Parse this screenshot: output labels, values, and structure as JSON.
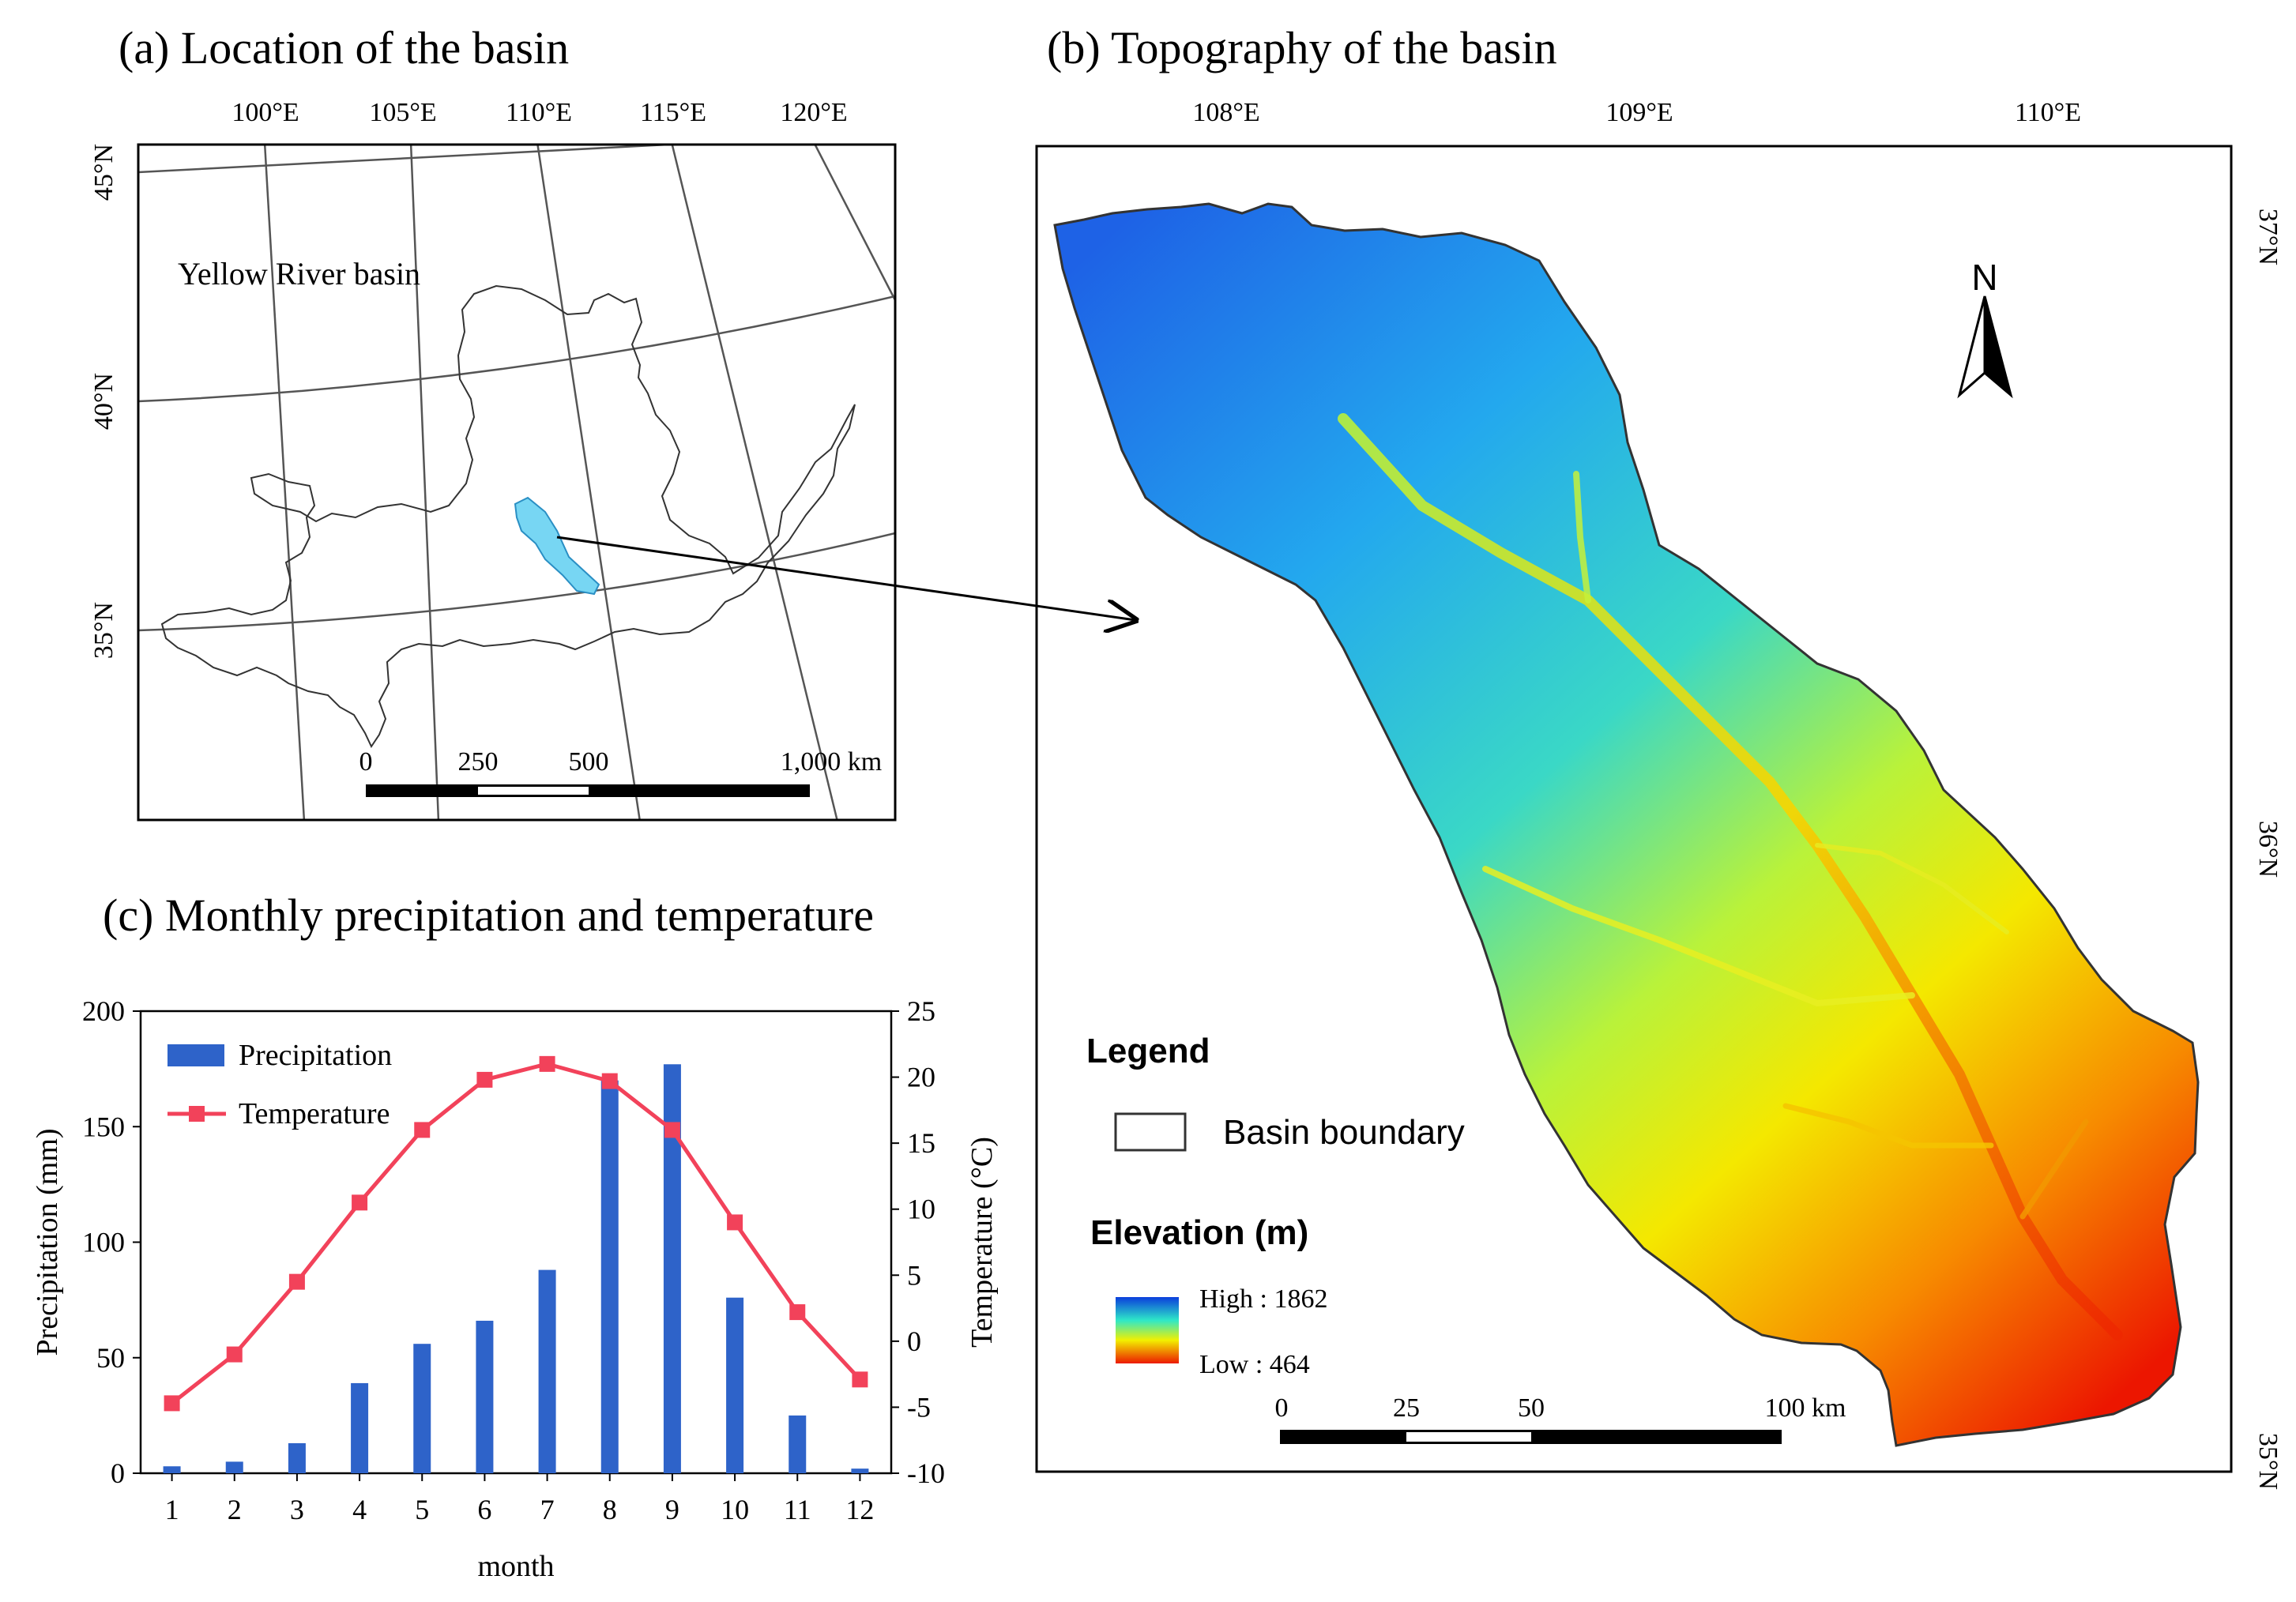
{
  "panel_a": {
    "title": "(a) Location of the basin",
    "lon_labels": [
      "100°E",
      "105°E",
      "110°E",
      "115°E",
      "120°E"
    ],
    "lat_labels": [
      "45°N",
      "40°N",
      "35°N"
    ],
    "region_label": "Yellow River basin",
    "scale_labels": [
      "0",
      "250",
      "500",
      "1,000 km"
    ]
  },
  "panel_b": {
    "title": "(b) Topography of the basin",
    "lon_labels": [
      "108°E",
      "109°E",
      "110°E"
    ],
    "lat_labels": [
      "37°N",
      "36°N",
      "35°N"
    ],
    "north_label": "N",
    "legend_title": "Legend",
    "legend_boundary": "Basin boundary",
    "elevation_title": "Elevation (m)",
    "high_label": "High : 1862",
    "low_label": "Low : 464",
    "scale_labels": [
      "0",
      "25",
      "50",
      "100 km"
    ],
    "colors": {
      "high": "#0a3ddc",
      "mid": "#2ee8c8",
      "mid2": "#f2f000",
      "low": "#ec1a00"
    }
  },
  "panel_c": {
    "title": "(c) Monthly precipitation and temperature"
  },
  "chart_data": {
    "type": "bar",
    "categories": [
      "1",
      "2",
      "3",
      "4",
      "5",
      "6",
      "7",
      "8",
      "9",
      "10",
      "11",
      "12"
    ],
    "xlabel": "month",
    "series": [
      {
        "name": "Precipitation",
        "type": "bar",
        "axis": "left",
        "color": "#2e63c9",
        "values": [
          3,
          5,
          13,
          39,
          56,
          66,
          88,
          170,
          177,
          76,
          25,
          2
        ]
      },
      {
        "name": "Temperature",
        "type": "line",
        "axis": "right",
        "color": "#f2425a",
        "values": [
          -4.7,
          -1.0,
          4.5,
          10.5,
          16.0,
          19.8,
          21.0,
          19.7,
          16.0,
          9.0,
          2.2,
          -2.9
        ]
      }
    ],
    "y_left": {
      "label": "Precipitation (mm)",
      "min": 0,
      "max": 200,
      "ticks": [
        "0",
        "50",
        "100",
        "150",
        "200"
      ]
    },
    "y_right": {
      "label": "Temperature (°C)",
      "min": -10,
      "max": 25,
      "ticks": [
        "-10",
        "-5",
        "0",
        "5",
        "10",
        "15",
        "20",
        "25"
      ]
    },
    "legend_position": "top-left"
  }
}
